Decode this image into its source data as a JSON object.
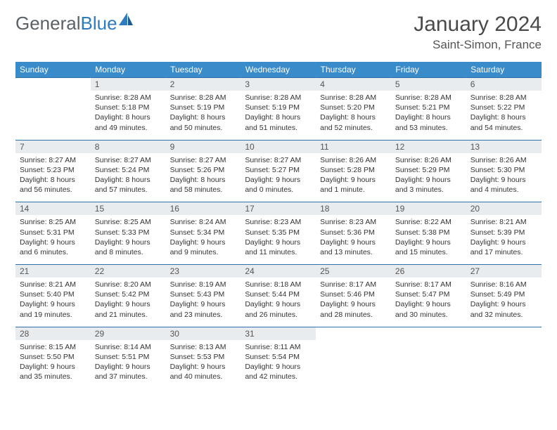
{
  "logo": {
    "text1": "General",
    "text2": "Blue"
  },
  "title": "January 2024",
  "location": "Saint-Simon, France",
  "colors": {
    "header_bg": "#3a8bc9",
    "header_text": "#ffffff",
    "daynum_bg": "#e9ecef",
    "border": "#2f6fa8",
    "logo_gray": "#5a6268",
    "logo_blue": "#2f7bbf"
  },
  "weekdays": [
    "Sunday",
    "Monday",
    "Tuesday",
    "Wednesday",
    "Thursday",
    "Friday",
    "Saturday"
  ],
  "weeks": [
    {
      "nums": [
        "",
        "1",
        "2",
        "3",
        "4",
        "5",
        "6"
      ],
      "cells": [
        null,
        {
          "sunrise": "Sunrise: 8:28 AM",
          "sunset": "Sunset: 5:18 PM",
          "day1": "Daylight: 8 hours",
          "day2": "and 49 minutes."
        },
        {
          "sunrise": "Sunrise: 8:28 AM",
          "sunset": "Sunset: 5:19 PM",
          "day1": "Daylight: 8 hours",
          "day2": "and 50 minutes."
        },
        {
          "sunrise": "Sunrise: 8:28 AM",
          "sunset": "Sunset: 5:19 PM",
          "day1": "Daylight: 8 hours",
          "day2": "and 51 minutes."
        },
        {
          "sunrise": "Sunrise: 8:28 AM",
          "sunset": "Sunset: 5:20 PM",
          "day1": "Daylight: 8 hours",
          "day2": "and 52 minutes."
        },
        {
          "sunrise": "Sunrise: 8:28 AM",
          "sunset": "Sunset: 5:21 PM",
          "day1": "Daylight: 8 hours",
          "day2": "and 53 minutes."
        },
        {
          "sunrise": "Sunrise: 8:28 AM",
          "sunset": "Sunset: 5:22 PM",
          "day1": "Daylight: 8 hours",
          "day2": "and 54 minutes."
        }
      ]
    },
    {
      "nums": [
        "7",
        "8",
        "9",
        "10",
        "11",
        "12",
        "13"
      ],
      "cells": [
        {
          "sunrise": "Sunrise: 8:27 AM",
          "sunset": "Sunset: 5:23 PM",
          "day1": "Daylight: 8 hours",
          "day2": "and 56 minutes."
        },
        {
          "sunrise": "Sunrise: 8:27 AM",
          "sunset": "Sunset: 5:24 PM",
          "day1": "Daylight: 8 hours",
          "day2": "and 57 minutes."
        },
        {
          "sunrise": "Sunrise: 8:27 AM",
          "sunset": "Sunset: 5:26 PM",
          "day1": "Daylight: 8 hours",
          "day2": "and 58 minutes."
        },
        {
          "sunrise": "Sunrise: 8:27 AM",
          "sunset": "Sunset: 5:27 PM",
          "day1": "Daylight: 9 hours",
          "day2": "and 0 minutes."
        },
        {
          "sunrise": "Sunrise: 8:26 AM",
          "sunset": "Sunset: 5:28 PM",
          "day1": "Daylight: 9 hours",
          "day2": "and 1 minute."
        },
        {
          "sunrise": "Sunrise: 8:26 AM",
          "sunset": "Sunset: 5:29 PM",
          "day1": "Daylight: 9 hours",
          "day2": "and 3 minutes."
        },
        {
          "sunrise": "Sunrise: 8:26 AM",
          "sunset": "Sunset: 5:30 PM",
          "day1": "Daylight: 9 hours",
          "day2": "and 4 minutes."
        }
      ]
    },
    {
      "nums": [
        "14",
        "15",
        "16",
        "17",
        "18",
        "19",
        "20"
      ],
      "cells": [
        {
          "sunrise": "Sunrise: 8:25 AM",
          "sunset": "Sunset: 5:31 PM",
          "day1": "Daylight: 9 hours",
          "day2": "and 6 minutes."
        },
        {
          "sunrise": "Sunrise: 8:25 AM",
          "sunset": "Sunset: 5:33 PM",
          "day1": "Daylight: 9 hours",
          "day2": "and 8 minutes."
        },
        {
          "sunrise": "Sunrise: 8:24 AM",
          "sunset": "Sunset: 5:34 PM",
          "day1": "Daylight: 9 hours",
          "day2": "and 9 minutes."
        },
        {
          "sunrise": "Sunrise: 8:23 AM",
          "sunset": "Sunset: 5:35 PM",
          "day1": "Daylight: 9 hours",
          "day2": "and 11 minutes."
        },
        {
          "sunrise": "Sunrise: 8:23 AM",
          "sunset": "Sunset: 5:36 PM",
          "day1": "Daylight: 9 hours",
          "day2": "and 13 minutes."
        },
        {
          "sunrise": "Sunrise: 8:22 AM",
          "sunset": "Sunset: 5:38 PM",
          "day1": "Daylight: 9 hours",
          "day2": "and 15 minutes."
        },
        {
          "sunrise": "Sunrise: 8:21 AM",
          "sunset": "Sunset: 5:39 PM",
          "day1": "Daylight: 9 hours",
          "day2": "and 17 minutes."
        }
      ]
    },
    {
      "nums": [
        "21",
        "22",
        "23",
        "24",
        "25",
        "26",
        "27"
      ],
      "cells": [
        {
          "sunrise": "Sunrise: 8:21 AM",
          "sunset": "Sunset: 5:40 PM",
          "day1": "Daylight: 9 hours",
          "day2": "and 19 minutes."
        },
        {
          "sunrise": "Sunrise: 8:20 AM",
          "sunset": "Sunset: 5:42 PM",
          "day1": "Daylight: 9 hours",
          "day2": "and 21 minutes."
        },
        {
          "sunrise": "Sunrise: 8:19 AM",
          "sunset": "Sunset: 5:43 PM",
          "day1": "Daylight: 9 hours",
          "day2": "and 23 minutes."
        },
        {
          "sunrise": "Sunrise: 8:18 AM",
          "sunset": "Sunset: 5:44 PM",
          "day1": "Daylight: 9 hours",
          "day2": "and 26 minutes."
        },
        {
          "sunrise": "Sunrise: 8:17 AM",
          "sunset": "Sunset: 5:46 PM",
          "day1": "Daylight: 9 hours",
          "day2": "and 28 minutes."
        },
        {
          "sunrise": "Sunrise: 8:17 AM",
          "sunset": "Sunset: 5:47 PM",
          "day1": "Daylight: 9 hours",
          "day2": "and 30 minutes."
        },
        {
          "sunrise": "Sunrise: 8:16 AM",
          "sunset": "Sunset: 5:49 PM",
          "day1": "Daylight: 9 hours",
          "day2": "and 32 minutes."
        }
      ]
    },
    {
      "nums": [
        "28",
        "29",
        "30",
        "31",
        "",
        "",
        ""
      ],
      "cells": [
        {
          "sunrise": "Sunrise: 8:15 AM",
          "sunset": "Sunset: 5:50 PM",
          "day1": "Daylight: 9 hours",
          "day2": "and 35 minutes."
        },
        {
          "sunrise": "Sunrise: 8:14 AM",
          "sunset": "Sunset: 5:51 PM",
          "day1": "Daylight: 9 hours",
          "day2": "and 37 minutes."
        },
        {
          "sunrise": "Sunrise: 8:13 AM",
          "sunset": "Sunset: 5:53 PM",
          "day1": "Daylight: 9 hours",
          "day2": "and 40 minutes."
        },
        {
          "sunrise": "Sunrise: 8:11 AM",
          "sunset": "Sunset: 5:54 PM",
          "day1": "Daylight: 9 hours",
          "day2": "and 42 minutes."
        },
        null,
        null,
        null
      ]
    }
  ]
}
